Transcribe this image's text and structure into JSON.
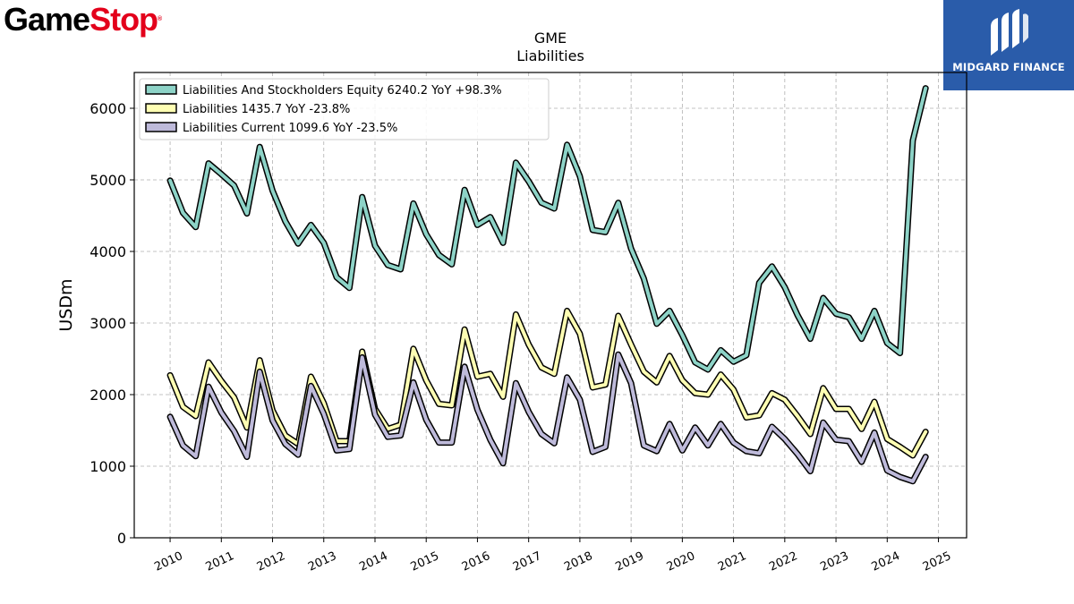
{
  "branding": {
    "logo_text_part1": "Game",
    "logo_text_part2": "Stop",
    "logo_mark": "®",
    "partner_name": "MIDGARD FINANCE",
    "partner_bg": "#2a5caa"
  },
  "chart_data": {
    "type": "line",
    "title": "GME",
    "subtitle": "Liabilities",
    "xlabel": "",
    "ylabel": "USDm",
    "xlim": [
      2009.3,
      2025.55
    ],
    "ylim": [
      0,
      6500
    ],
    "x_ticks": [
      2010,
      2011,
      2012,
      2013,
      2014,
      2015,
      2016,
      2017,
      2018,
      2019,
      2020,
      2021,
      2022,
      2023,
      2024,
      2025
    ],
    "x_tick_labels": [
      "2010",
      "2011",
      "2012",
      "2013",
      "2014",
      "2015",
      "2016",
      "2017",
      "2018",
      "2019",
      "2020",
      "2021",
      "2022",
      "2023",
      "2024",
      "2025"
    ],
    "y_ticks": [
      0,
      1000,
      2000,
      3000,
      4000,
      5000,
      6000
    ],
    "y_tick_labels": [
      "0",
      "1000",
      "2000",
      "3000",
      "4000",
      "5000",
      "6000"
    ],
    "grid": true,
    "legend_position": "top-left",
    "x": [
      2010.0,
      2010.25,
      2010.5,
      2010.75,
      2011.0,
      2011.25,
      2011.5,
      2011.75,
      2012.0,
      2012.25,
      2012.5,
      2012.75,
      2013.0,
      2013.25,
      2013.5,
      2013.75,
      2014.0,
      2014.25,
      2014.5,
      2014.75,
      2015.0,
      2015.25,
      2015.5,
      2015.75,
      2016.0,
      2016.25,
      2016.5,
      2016.75,
      2017.0,
      2017.25,
      2017.5,
      2017.75,
      2018.0,
      2018.25,
      2018.5,
      2018.75,
      2019.0,
      2019.25,
      2019.5,
      2019.75,
      2020.0,
      2020.25,
      2020.5,
      2020.75,
      2021.0,
      2021.25,
      2021.5,
      2021.75,
      2022.0,
      2022.25,
      2022.5,
      2022.75,
      2023.0,
      2023.25,
      2023.5,
      2023.75,
      2024.0,
      2024.25,
      2024.5,
      2024.75
    ],
    "series": [
      {
        "name": "Liabilities And Stockholders Equity",
        "legend_label": "Liabilities And Stockholders Equity  6240.2 YoY +98.3%",
        "color": "#8dd3c7",
        "values": [
          4990,
          4540,
          4340,
          5230,
          5080,
          4920,
          4530,
          5460,
          4850,
          4420,
          4110,
          4370,
          4120,
          3640,
          3490,
          4760,
          4080,
          3810,
          3750,
          4670,
          4240,
          3950,
          3820,
          4860,
          4370,
          4480,
          4120,
          5240,
          4980,
          4680,
          4600,
          5490,
          5050,
          4300,
          4270,
          4680,
          4040,
          3620,
          2990,
          3170,
          2830,
          2450,
          2350,
          2620,
          2460,
          2550,
          3560,
          3790,
          3500,
          3110,
          2780,
          3350,
          3130,
          3080,
          2780,
          3170,
          2720,
          2580,
          5550,
          6280
        ]
      },
      {
        "name": "Liabilities",
        "legend_label": "Liabilities  1435.7 YoY -23.8%",
        "color": "#ffffb3",
        "values": [
          2270,
          1830,
          1700,
          2450,
          2190,
          1960,
          1540,
          2480,
          1780,
          1430,
          1310,
          2250,
          1880,
          1350,
          1350,
          2600,
          1800,
          1520,
          1580,
          2640,
          2200,
          1870,
          1850,
          2910,
          2250,
          2290,
          1970,
          3120,
          2700,
          2380,
          2290,
          3170,
          2850,
          2100,
          2140,
          3100,
          2700,
          2320,
          2170,
          2540,
          2200,
          2020,
          2000,
          2280,
          2070,
          1680,
          1710,
          2020,
          1930,
          1700,
          1450,
          2090,
          1800,
          1800,
          1520,
          1900,
          1380,
          1270,
          1150,
          1480
        ]
      },
      {
        "name": "Liabilities Current",
        "legend_label": "Liabilities Current  1099.6 YoY -23.5%",
        "color": "#bebada",
        "values": [
          1690,
          1290,
          1140,
          2110,
          1750,
          1490,
          1130,
          2320,
          1640,
          1310,
          1160,
          2120,
          1730,
          1220,
          1240,
          2520,
          1720,
          1410,
          1430,
          2170,
          1650,
          1330,
          1330,
          2390,
          1790,
          1370,
          1040,
          2160,
          1760,
          1450,
          1320,
          2240,
          1930,
          1200,
          1270,
          2560,
          2160,
          1290,
          1210,
          1590,
          1220,
          1540,
          1290,
          1590,
          1330,
          1210,
          1180,
          1550,
          1380,
          1170,
          930,
          1610,
          1370,
          1350,
          1060,
          1470,
          940,
          850,
          790,
          1130
        ]
      }
    ]
  }
}
